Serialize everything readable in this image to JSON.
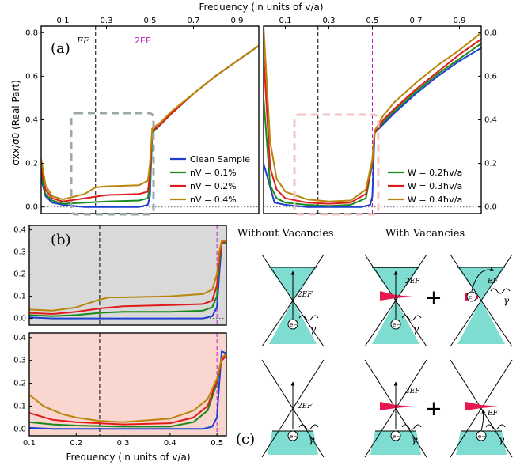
{
  "figure": {
    "top_axis_label": "Frequency (in units of v/a)",
    "bottom_axis_label": "Frequency (in units of v/a)",
    "y_axis_label": "σxx/σ0 (Real Part)",
    "panel_a_label": "(a)",
    "panel_b_label": "(b)",
    "panel_c_label": "(c)",
    "ef_label": "EF",
    "two_ef_label": "2EF",
    "col_without": "Without Vacancies",
    "col_with": "With Vacancies",
    "diagram_2ef": "2EF",
    "diagram_ef": "EF",
    "gamma": "γ",
    "electron": "e−",
    "plus": "+"
  },
  "colors": {
    "blue": "#1f3fd1",
    "green": "#1a8a1a",
    "red": "#e01b1b",
    "gold": "#b8860b",
    "teal": "#7fdcd0",
    "magenta": "#c020c0",
    "gray_bg": "#d9d9d9",
    "pink_bg": "#f9d6d0"
  },
  "chart_data": [
    {
      "type": "line",
      "panel": "(a) left",
      "xlabel": "Frequency (in units of v/a)",
      "ylabel": "σxx/σ0 (Real Part)",
      "xlim": [
        0.0,
        1.0
      ],
      "ylim": [
        -0.03,
        0.83
      ],
      "x_ticks": [
        "0.1",
        "0.3",
        "0.5",
        "0.7",
        "0.9"
      ],
      "y_ticks": [
        "0.0",
        "0.2",
        "0.4",
        "0.6",
        "0.8"
      ],
      "vlines": [
        {
          "x": 0.25,
          "label": "EF"
        },
        {
          "x": 0.5,
          "label": "2EF"
        }
      ],
      "series": [
        {
          "name": "Clean Sample",
          "color": "blue",
          "x": [
            0.0,
            0.02,
            0.05,
            0.1,
            0.2,
            0.3,
            0.45,
            0.49,
            0.5,
            0.51,
            0.55,
            0.6,
            0.7,
            0.8,
            0.9,
            1.0
          ],
          "y": [
            0.13,
            0.05,
            0.02,
            0.01,
            0.0,
            0.0,
            0.0,
            0.01,
            0.05,
            0.34,
            0.38,
            0.43,
            0.52,
            0.6,
            0.67,
            0.74
          ]
        },
        {
          "name": "nV = 0.1%",
          "color": "green",
          "x": [
            0.0,
            0.02,
            0.05,
            0.1,
            0.2,
            0.3,
            0.45,
            0.49,
            0.5,
            0.51,
            0.55,
            0.6,
            0.7,
            0.8,
            0.9,
            1.0
          ],
          "y": [
            0.15,
            0.06,
            0.03,
            0.015,
            0.02,
            0.025,
            0.03,
            0.04,
            0.1,
            0.34,
            0.38,
            0.43,
            0.52,
            0.6,
            0.67,
            0.74
          ]
        },
        {
          "name": "nV = 0.2%",
          "color": "red",
          "x": [
            0.0,
            0.02,
            0.05,
            0.1,
            0.2,
            0.3,
            0.45,
            0.49,
            0.5,
            0.51,
            0.55,
            0.6,
            0.7,
            0.8,
            0.9,
            1.0
          ],
          "y": [
            0.18,
            0.08,
            0.04,
            0.025,
            0.04,
            0.055,
            0.06,
            0.07,
            0.15,
            0.35,
            0.38,
            0.43,
            0.52,
            0.6,
            0.67,
            0.74
          ]
        },
        {
          "name": "nV = 0.4%",
          "color": "gold",
          "x": [
            0.0,
            0.02,
            0.05,
            0.1,
            0.2,
            0.25,
            0.3,
            0.45,
            0.49,
            0.5,
            0.51,
            0.55,
            0.6,
            0.7,
            0.8,
            0.9,
            1.0
          ],
          "y": [
            0.22,
            0.1,
            0.05,
            0.035,
            0.06,
            0.09,
            0.095,
            0.1,
            0.12,
            0.2,
            0.36,
            0.39,
            0.44,
            0.52,
            0.6,
            0.67,
            0.74
          ]
        }
      ],
      "legend": "lower-right"
    },
    {
      "type": "line",
      "panel": "(a) right",
      "xlim": [
        0.0,
        1.0
      ],
      "ylim": [
        -0.03,
        0.83
      ],
      "x_ticks": [
        "0.1",
        "0.3",
        "0.5",
        "0.7",
        "0.9"
      ],
      "y_ticks": [
        "0.0",
        "0.2",
        "0.4",
        "0.6",
        "0.8"
      ],
      "vlines": [
        {
          "x": 0.25
        },
        {
          "x": 0.5
        }
      ],
      "series": [
        {
          "name": "Clean Sample",
          "color": "blue",
          "x": [
            0.0,
            0.05,
            0.1,
            0.2,
            0.3,
            0.45,
            0.49,
            0.5,
            0.51,
            0.55,
            0.6,
            0.7,
            0.8,
            0.9,
            1.0
          ],
          "y": [
            0.2,
            0.02,
            0.01,
            0.0,
            0.0,
            0.0,
            0.01,
            0.05,
            0.34,
            0.38,
            0.43,
            0.52,
            0.6,
            0.67,
            0.73
          ]
        },
        {
          "name": "W = 0.2ħv/a",
          "color": "green",
          "x": [
            0.0,
            0.03,
            0.06,
            0.1,
            0.2,
            0.3,
            0.4,
            0.47,
            0.5,
            0.51,
            0.55,
            0.6,
            0.7,
            0.8,
            0.9,
            1.0
          ],
          "y": [
            0.5,
            0.1,
            0.04,
            0.02,
            0.01,
            0.005,
            0.01,
            0.04,
            0.2,
            0.34,
            0.39,
            0.44,
            0.53,
            0.61,
            0.68,
            0.75
          ]
        },
        {
          "name": "W = 0.3ħv/a",
          "color": "red",
          "x": [
            0.0,
            0.03,
            0.06,
            0.1,
            0.2,
            0.3,
            0.4,
            0.47,
            0.5,
            0.51,
            0.55,
            0.6,
            0.7,
            0.8,
            0.9,
            1.0
          ],
          "y": [
            0.7,
            0.18,
            0.08,
            0.04,
            0.02,
            0.015,
            0.02,
            0.06,
            0.21,
            0.34,
            0.4,
            0.45,
            0.54,
            0.62,
            0.7,
            0.77
          ]
        },
        {
          "name": "W = 0.4ħv/a",
          "color": "gold",
          "x": [
            0.0,
            0.03,
            0.06,
            0.1,
            0.2,
            0.3,
            0.4,
            0.47,
            0.5,
            0.51,
            0.55,
            0.6,
            0.7,
            0.8,
            0.9,
            1.0
          ],
          "y": [
            0.83,
            0.3,
            0.13,
            0.07,
            0.035,
            0.025,
            0.03,
            0.08,
            0.22,
            0.35,
            0.42,
            0.48,
            0.57,
            0.65,
            0.72,
            0.8
          ]
        }
      ],
      "legend": "lower-right"
    },
    {
      "type": "line",
      "panel": "(b) top",
      "xlim": [
        0.1,
        0.52
      ],
      "ylim": [
        -0.03,
        0.42
      ],
      "y_ticks": [
        "0.0",
        "0.1",
        "0.2",
        "0.3",
        "0.4"
      ],
      "vlines": [
        {
          "x": 0.25
        },
        {
          "x": 0.5
        }
      ],
      "series": [
        {
          "name": "Clean Sample",
          "color": "blue",
          "x": [
            0.1,
            0.15,
            0.2,
            0.3,
            0.4,
            0.47,
            0.49,
            0.5,
            0.505,
            0.51,
            0.52
          ],
          "y": [
            0.005,
            0.0,
            0.0,
            0.0,
            0.0,
            0.0,
            0.01,
            0.05,
            0.2,
            0.34,
            0.34
          ]
        },
        {
          "name": "nV = 0.1%",
          "color": "green",
          "x": [
            0.1,
            0.15,
            0.2,
            0.25,
            0.3,
            0.4,
            0.47,
            0.49,
            0.5,
            0.505,
            0.51,
            0.52
          ],
          "y": [
            0.015,
            0.01,
            0.015,
            0.025,
            0.03,
            0.03,
            0.035,
            0.05,
            0.1,
            0.25,
            0.34,
            0.34
          ]
        },
        {
          "name": "nV = 0.2%",
          "color": "red",
          "x": [
            0.1,
            0.15,
            0.2,
            0.25,
            0.3,
            0.4,
            0.47,
            0.49,
            0.5,
            0.505,
            0.51,
            0.52
          ],
          "y": [
            0.025,
            0.02,
            0.03,
            0.045,
            0.055,
            0.06,
            0.065,
            0.08,
            0.15,
            0.27,
            0.34,
            0.35
          ]
        },
        {
          "name": "nV = 0.4%",
          "color": "gold",
          "x": [
            0.1,
            0.15,
            0.2,
            0.25,
            0.27,
            0.3,
            0.4,
            0.47,
            0.49,
            0.5,
            0.505,
            0.51,
            0.52
          ],
          "y": [
            0.04,
            0.035,
            0.05,
            0.085,
            0.095,
            0.095,
            0.1,
            0.11,
            0.13,
            0.2,
            0.3,
            0.35,
            0.35
          ]
        }
      ]
    },
    {
      "type": "line",
      "panel": "(b) bottom",
      "xlabel": "Frequency (in units of v/a)",
      "xlim": [
        0.1,
        0.52
      ],
      "ylim": [
        -0.03,
        0.42
      ],
      "x_ticks": [
        "0.1",
        "0.2",
        "0.3",
        "0.4",
        "0.5"
      ],
      "y_ticks": [
        "0.0",
        "0.1",
        "0.2",
        "0.3",
        "0.4"
      ],
      "vlines": [
        {
          "x": 0.25
        },
        {
          "x": 0.5
        }
      ],
      "series": [
        {
          "name": "Clean Sample",
          "color": "blue",
          "x": [
            0.1,
            0.15,
            0.2,
            0.3,
            0.4,
            0.47,
            0.49,
            0.5,
            0.505,
            0.51,
            0.52
          ],
          "y": [
            0.005,
            0.0,
            0.0,
            0.0,
            0.0,
            0.0,
            0.01,
            0.05,
            0.2,
            0.34,
            0.33
          ]
        },
        {
          "name": "W = 0.2ħv/a",
          "color": "green",
          "x": [
            0.1,
            0.15,
            0.2,
            0.3,
            0.4,
            0.45,
            0.48,
            0.5,
            0.51,
            0.52
          ],
          "y": [
            0.03,
            0.02,
            0.015,
            0.01,
            0.01,
            0.03,
            0.08,
            0.2,
            0.3,
            0.32
          ]
        },
        {
          "name": "W = 0.3ħv/a",
          "color": "red",
          "x": [
            0.1,
            0.15,
            0.2,
            0.3,
            0.4,
            0.45,
            0.48,
            0.5,
            0.51,
            0.52
          ],
          "y": [
            0.07,
            0.04,
            0.03,
            0.02,
            0.025,
            0.05,
            0.1,
            0.21,
            0.3,
            0.32
          ]
        },
        {
          "name": "W = 0.4ħv/a",
          "color": "gold",
          "x": [
            0.1,
            0.13,
            0.17,
            0.2,
            0.25,
            0.3,
            0.4,
            0.45,
            0.48,
            0.5,
            0.51,
            0.52
          ],
          "y": [
            0.15,
            0.1,
            0.065,
            0.05,
            0.035,
            0.03,
            0.045,
            0.08,
            0.13,
            0.22,
            0.31,
            0.33
          ]
        }
      ]
    }
  ]
}
